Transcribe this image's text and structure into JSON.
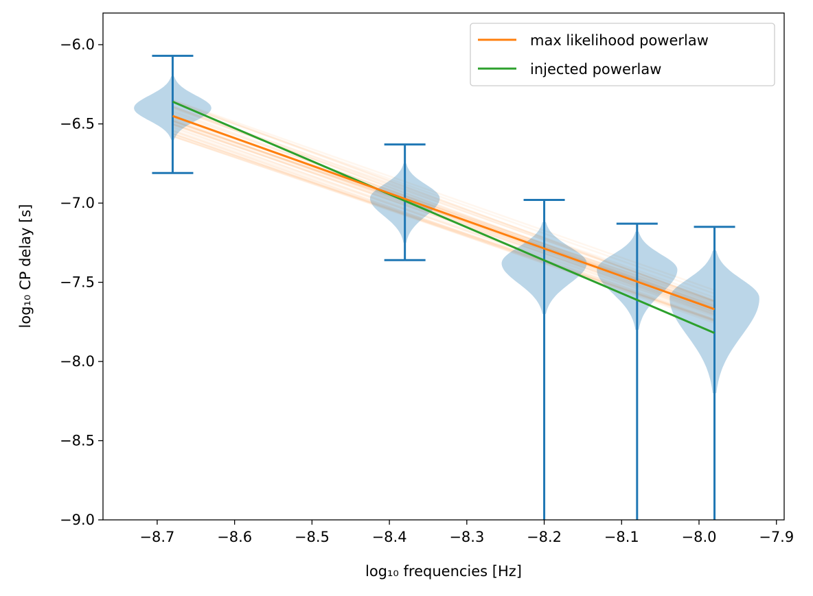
{
  "chart_data": {
    "type": "violin",
    "xlabel": "log₁₀  frequencies [Hz]",
    "ylabel": "log₁₀  CP delay [s]",
    "xlim": [
      -8.77,
      -7.89
    ],
    "ylim": [
      -9.0,
      -5.8
    ],
    "xticks": [
      -8.7,
      -8.6,
      -8.5,
      -8.4,
      -8.3,
      -8.2,
      -8.1,
      -8.0,
      -7.9
    ],
    "yticks": [
      -9.0,
      -8.5,
      -8.0,
      -7.5,
      -7.0,
      -6.5,
      -6.0
    ],
    "grid": false,
    "legend_position": "top-right",
    "colors": {
      "violin": "#1f77b4",
      "max_likelihood": "#ff7f0e",
      "injected": "#2ca02c"
    },
    "violins": [
      {
        "x": -8.68,
        "y_min": -6.81,
        "y_max": -6.07,
        "center": -6.4,
        "y_bottom": -6.6,
        "y_top": -6.2,
        "width": 0.05
      },
      {
        "x": -8.38,
        "y_min": -7.36,
        "y_max": -6.63,
        "center": -6.97,
        "y_bottom": -7.25,
        "y_top": -6.75,
        "width": 0.045
      },
      {
        "x": -8.2,
        "y_min": -9.0,
        "y_max": -6.98,
        "center": -7.38,
        "y_bottom": -7.7,
        "y_top": -7.12,
        "width": 0.055
      },
      {
        "x": -8.08,
        "y_min": -9.0,
        "y_max": -7.13,
        "center": -7.42,
        "y_bottom": -7.8,
        "y_top": -7.18,
        "width": 0.052
      },
      {
        "x": -7.98,
        "y_min": -9.0,
        "y_max": -7.15,
        "center": -7.6,
        "y_bottom": -8.2,
        "y_top": -7.3,
        "width": 0.058
      }
    ],
    "series": [
      {
        "name": "max likelihood powerlaw",
        "x": [
          -8.68,
          -7.98
        ],
        "y": [
          -6.45,
          -7.67
        ]
      },
      {
        "name": "injected powerlaw",
        "x": [
          -8.68,
          -7.98
        ],
        "y": [
          -6.36,
          -7.82
        ]
      }
    ],
    "posterior_lines": {
      "x": [
        -8.68,
        -7.98
      ],
      "y_start_range": [
        -6.35,
        -6.58
      ],
      "y_end_range": [
        -7.55,
        -7.78
      ]
    }
  }
}
